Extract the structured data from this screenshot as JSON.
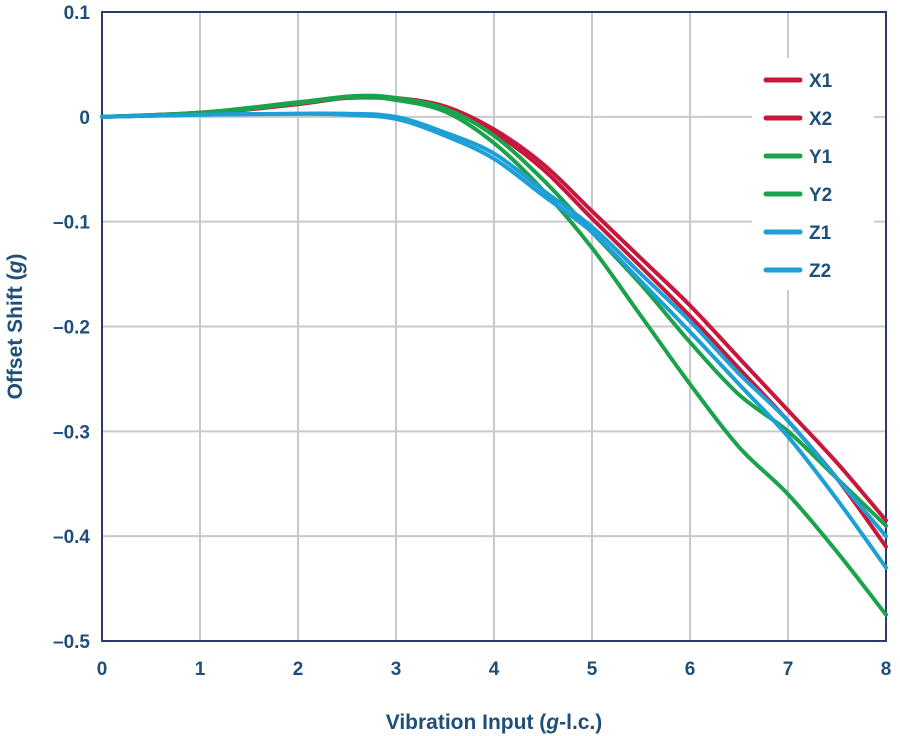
{
  "chart_data": {
    "type": "line",
    "title": "",
    "xlabel": "Vibration Input (g-l.c.)",
    "xlabel_parts": [
      "Vibration Input (",
      "g",
      "-l.c.)"
    ],
    "ylabel": "Offset Shift (g)",
    "ylabel_parts": [
      "Offset Shift (",
      "g",
      ")"
    ],
    "xlim": [
      0,
      8
    ],
    "ylim": [
      -0.5,
      0.1
    ],
    "x_ticks": [
      0,
      1,
      2,
      3,
      4,
      5,
      6,
      7,
      8
    ],
    "x_tick_labels": [
      "0",
      "1",
      "2",
      "3",
      "4",
      "5",
      "6",
      "7",
      "8"
    ],
    "y_ticks": [
      0.1,
      0,
      -0.1,
      -0.2,
      -0.3,
      -0.4,
      -0.5
    ],
    "y_tick_labels": [
      "0.1",
      "0",
      "–0.1",
      "–0.2",
      "–0.3",
      "–0.4",
      "–0.5"
    ],
    "grid": true,
    "legend_position": "top-right",
    "colors": {
      "text": "#1f4e79",
      "grid": "#c7c9d1",
      "axes": "#2a3a6a",
      "x": "#c8173c",
      "y": "#1aa34a",
      "z": "#1e9fd6"
    },
    "series": [
      {
        "name": "X1",
        "color": "#c8173c",
        "x": [
          0,
          1,
          2,
          2.5,
          3,
          3.5,
          4,
          4.5,
          5,
          5.5,
          6,
          6.5,
          7,
          7.5,
          8
        ],
        "y": [
          0,
          0.004,
          0.013,
          0.019,
          0.018,
          0.01,
          -0.012,
          -0.045,
          -0.09,
          -0.135,
          -0.18,
          -0.23,
          -0.28,
          -0.33,
          -0.385
        ]
      },
      {
        "name": "X2",
        "color": "#c8173c",
        "x": [
          0,
          1,
          2,
          2.5,
          3,
          3.5,
          4,
          4.5,
          5,
          5.5,
          6,
          6.5,
          7,
          7.5,
          8
        ],
        "y": [
          0,
          0.003,
          0.012,
          0.018,
          0.017,
          0.008,
          -0.015,
          -0.05,
          -0.097,
          -0.143,
          -0.19,
          -0.24,
          -0.29,
          -0.345,
          -0.41
        ]
      },
      {
        "name": "Y1",
        "color": "#1aa34a",
        "x": [
          0,
          1,
          2,
          2.6,
          3,
          3.5,
          4,
          4.5,
          5,
          5.5,
          6,
          6.5,
          7,
          7.5,
          8
        ],
        "y": [
          0,
          0.004,
          0.014,
          0.02,
          0.018,
          0.008,
          -0.018,
          -0.06,
          -0.11,
          -0.16,
          -0.215,
          -0.265,
          -0.3,
          -0.345,
          -0.39
        ]
      },
      {
        "name": "Y2",
        "color": "#1aa34a",
        "x": [
          0,
          1,
          2,
          2.6,
          3,
          3.5,
          4,
          4.5,
          5,
          5.5,
          6,
          6.5,
          7,
          7.5,
          8
        ],
        "y": [
          0,
          0.003,
          0.013,
          0.019,
          0.016,
          0.005,
          -0.025,
          -0.07,
          -0.125,
          -0.19,
          -0.255,
          -0.315,
          -0.36,
          -0.415,
          -0.475
        ]
      },
      {
        "name": "Z1",
        "color": "#1e9fd6",
        "x": [
          0,
          1,
          2,
          2.5,
          3,
          3.5,
          4,
          4.5,
          5,
          5.5,
          6,
          6.5,
          7,
          7.5,
          8
        ],
        "y": [
          0,
          0.002,
          0.003,
          0.003,
          0,
          -0.015,
          -0.035,
          -0.07,
          -0.105,
          -0.15,
          -0.195,
          -0.245,
          -0.29,
          -0.345,
          -0.4
        ]
      },
      {
        "name": "Z2",
        "color": "#1e9fd6",
        "x": [
          0,
          1,
          2,
          2.5,
          3,
          3.5,
          4,
          4.5,
          5,
          5.5,
          6,
          6.5,
          7,
          7.5,
          8
        ],
        "y": [
          0,
          0.002,
          0.003,
          0.002,
          -0.002,
          -0.018,
          -0.04,
          -0.075,
          -0.11,
          -0.157,
          -0.205,
          -0.255,
          -0.305,
          -0.365,
          -0.43
        ]
      }
    ]
  }
}
